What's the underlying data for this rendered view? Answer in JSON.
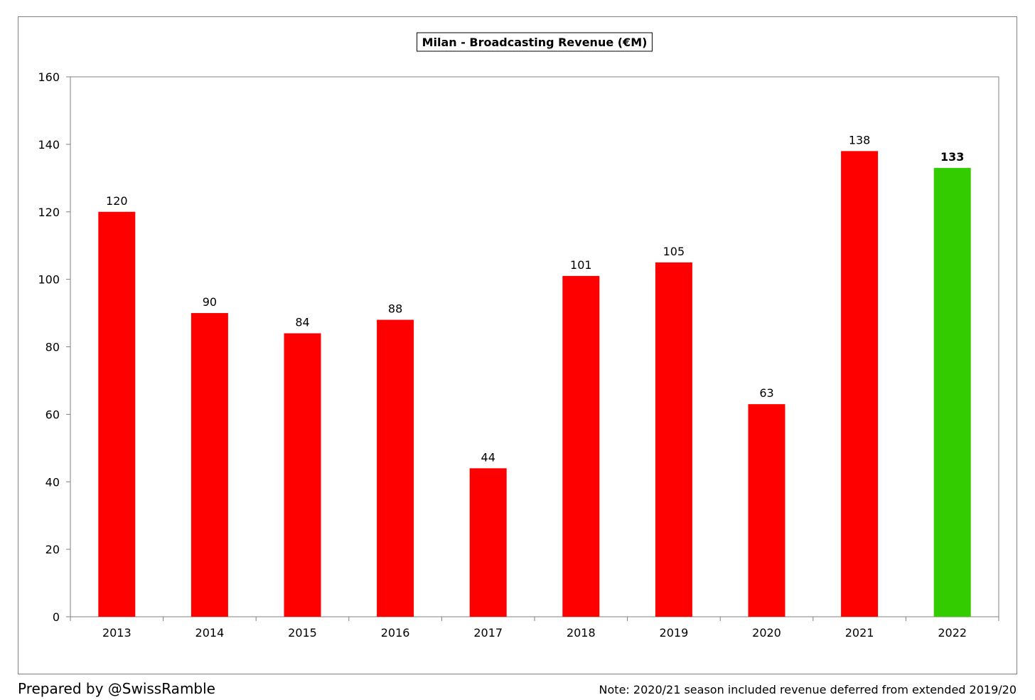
{
  "chart_data": {
    "type": "bar",
    "title": "Milan - Broadcasting Revenue (€M)",
    "xlabel": "",
    "ylabel": "",
    "categories": [
      "2013",
      "2014",
      "2015",
      "2016",
      "2017",
      "2018",
      "2019",
      "2020",
      "2021",
      "2022"
    ],
    "values": [
      120,
      90,
      84,
      88,
      44,
      101,
      105,
      63,
      138,
      133
    ],
    "data_labels": [
      "120",
      "90",
      "84",
      "88",
      "44",
      "101",
      "105",
      "63",
      "138",
      "133"
    ],
    "highlight_index": 9,
    "ylim": [
      0,
      160
    ],
    "yticks": [
      0,
      20,
      40,
      60,
      80,
      100,
      120,
      140,
      160
    ],
    "grid": false,
    "colors": {
      "bar": "#ff0000",
      "highlight": "#33cc00",
      "axis": "#808080"
    }
  },
  "footer": {
    "credit": "Prepared by @SwissRamble",
    "note": "Note: 2020/21 season included revenue deferred from extended 2019/20"
  }
}
